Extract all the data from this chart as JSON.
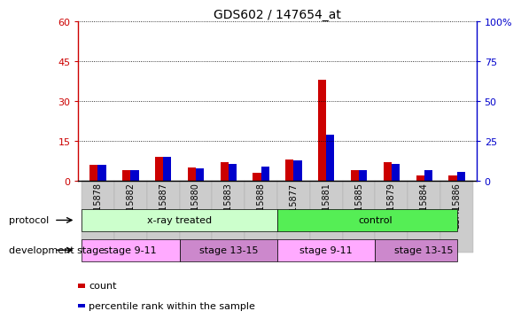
{
  "title": "GDS602 / 147654_at",
  "samples": [
    "GSM15878",
    "GSM15882",
    "GSM15887",
    "GSM15880",
    "GSM15883",
    "GSM15888",
    "GSM15877",
    "GSM15881",
    "GSM15885",
    "GSM15879",
    "GSM15884",
    "GSM15886"
  ],
  "count_values": [
    6,
    4,
    9,
    5,
    7,
    3,
    8,
    38,
    4,
    7,
    2,
    2
  ],
  "percentile_values": [
    10,
    7,
    15,
    8,
    11,
    9,
    13,
    29,
    7,
    11,
    7,
    6
  ],
  "left_ylim": [
    0,
    60
  ],
  "right_ylim": [
    0,
    100
  ],
  "left_yticks": [
    0,
    15,
    30,
    45,
    60
  ],
  "right_yticks": [
    0,
    25,
    50,
    75,
    100
  ],
  "left_yticklabels": [
    "0",
    "15",
    "30",
    "45",
    "60"
  ],
  "right_yticklabels": [
    "0",
    "25",
    "50",
    "75",
    "100%"
  ],
  "left_tick_color": "#cc0000",
  "right_tick_color": "#0000cc",
  "bar_color_count": "#cc0000",
  "bar_color_pct": "#0000cc",
  "bar_width": 0.25,
  "protocol_labels": [
    "x-ray treated",
    "control"
  ],
  "protocol_color_light": "#ccffcc",
  "protocol_color_dark": "#55ee55",
  "stage_labels": [
    "stage 9-11",
    "stage 13-15",
    "stage 9-11",
    "stage 13-15"
  ],
  "stage_color_light": "#ffaaff",
  "stage_color_dark": "#cc88cc",
  "xtick_bg_color": "#cccccc",
  "grid_color": "#000000",
  "background_color": "#ffffff",
  "legend_items": [
    "count",
    "percentile rank within the sample"
  ]
}
